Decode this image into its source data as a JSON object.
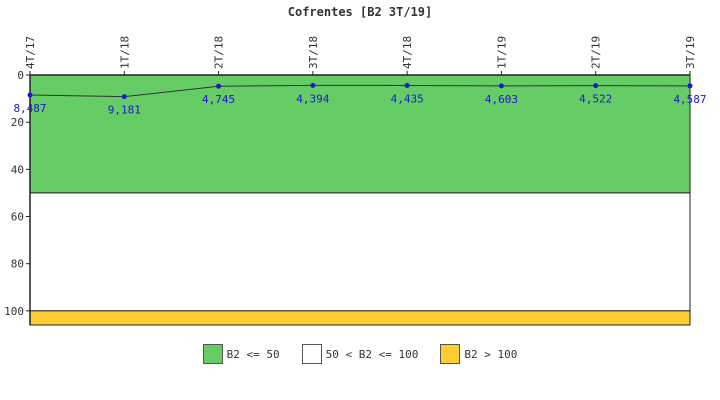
{
  "chart_data": {
    "type": "line",
    "title": "Cofrentes [B2 3T/19]",
    "categories": [
      "4T/17",
      "1T/18",
      "2T/18",
      "3T/18",
      "4T/18",
      "1T/19",
      "2T/19",
      "3T/19"
    ],
    "series": [
      {
        "values": [
          8.487,
          9.181,
          4.745,
          4.394,
          4.435,
          4.603,
          4.522,
          4.587
        ],
        "labels": [
          "8,487",
          "9,181",
          "4,745",
          "4,394",
          "4,435",
          "4,603",
          "4,522",
          "4,587"
        ],
        "color": "#1a1acc",
        "line_color": "#333333"
      }
    ],
    "yaxis": {
      "ticks": [
        0,
        20,
        40,
        60,
        80,
        100
      ],
      "ylim": [
        0,
        106
      ],
      "inverted": true
    },
    "bands": [
      {
        "from": 0,
        "to": 50,
        "color": "#66cc66",
        "label": "B2 <= 50"
      },
      {
        "from": 50,
        "to": 100,
        "color": "#ffffff",
        "label": "50 < B2 <= 100"
      },
      {
        "from": 100,
        "to": 106,
        "color": "#ffcc33",
        "label": "B2 > 100"
      }
    ],
    "legend_position": "bottom-center",
    "grid": false
  }
}
